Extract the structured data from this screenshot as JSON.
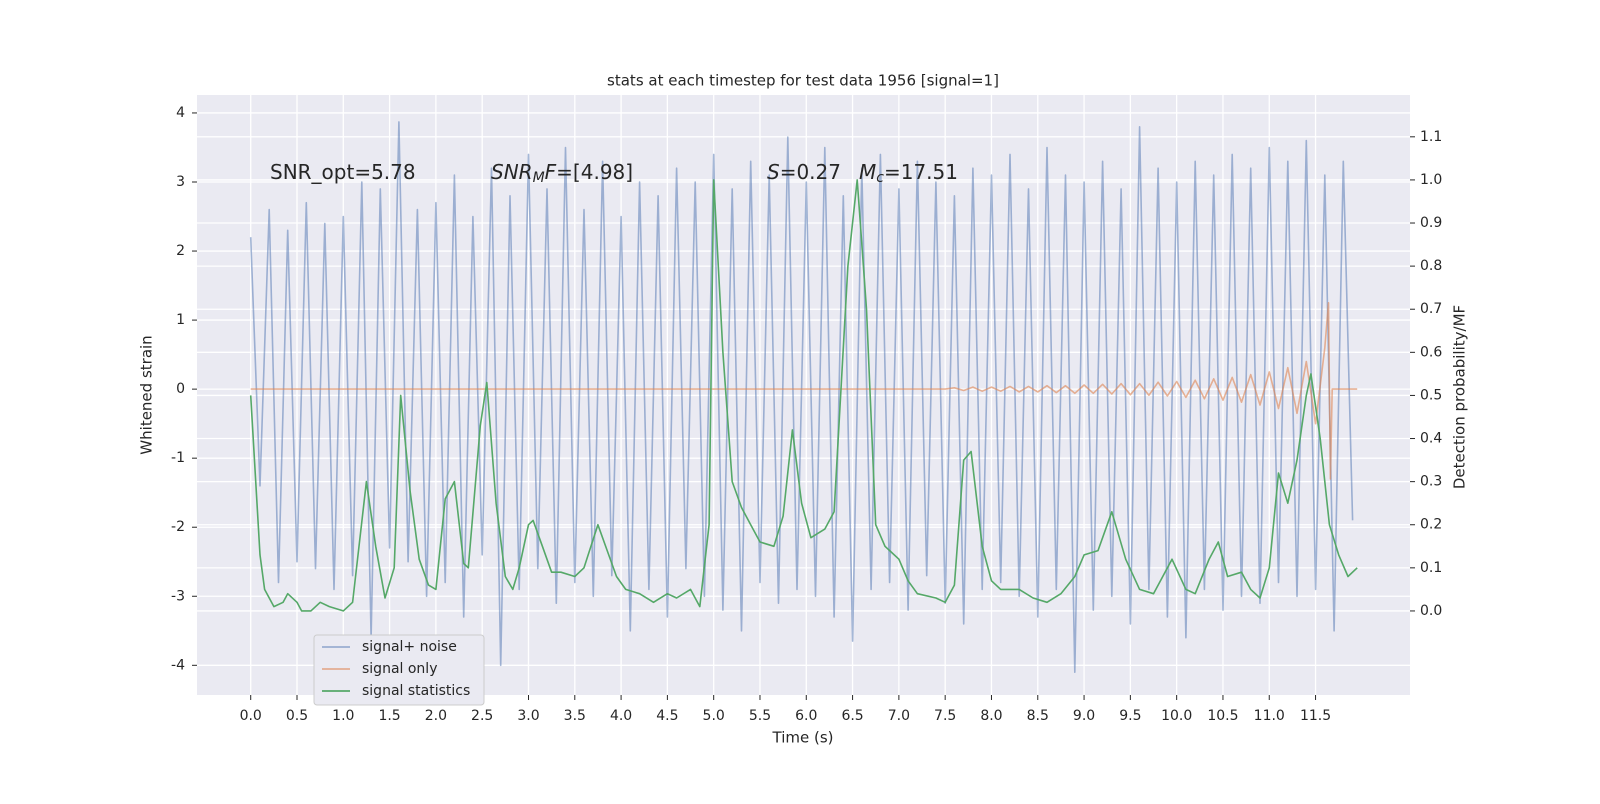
{
  "chart_data": {
    "type": "line",
    "title": "stats at each timestep for test data 1956 [signal=1]",
    "xlabel": "Time (s)",
    "ylabel": "Whitened strain",
    "y2label": "Detection probability/MF",
    "xlim": [
      -0.58,
      12.52
    ],
    "ylim": [
      -4.43,
      4.26
    ],
    "y2lim": [
      -0.195,
      1.197
    ],
    "xticks": [
      {
        "value": 0,
        "label": "0.0"
      },
      0.5,
      {
        "value": 1,
        "label": "1.0"
      },
      1.5,
      {
        "value": 2,
        "label": "2.0"
      },
      2.5,
      {
        "value": 3,
        "label": "3.0"
      },
      3.5,
      {
        "value": 4,
        "label": "4.0"
      },
      4.5,
      {
        "value": 5,
        "label": "5.0"
      },
      5.5,
      {
        "value": 6,
        "label": "6.0"
      },
      6.5,
      {
        "value": 7,
        "label": "7.0"
      },
      7.5,
      {
        "value": 8,
        "label": "8.0"
      },
      8.5,
      {
        "value": 9,
        "label": "9.0"
      },
      9.5,
      {
        "value": 10,
        "label": "10.0"
      },
      10.5,
      {
        "value": 11,
        "label": "11.0"
      },
      11.5
    ],
    "yticks": [
      -4,
      -3,
      -2,
      -1,
      0,
      1,
      2,
      3,
      4
    ],
    "y2ticks": [
      {
        "value": 0,
        "label": "0.0"
      },
      0.1,
      0.2,
      0.3,
      0.4,
      0.5,
      0.6,
      0.7,
      0.8,
      0.9,
      {
        "value": 1,
        "label": "1.0"
      },
      1.1
    ],
    "grid": true,
    "legend": "lower left",
    "annotations": [
      {
        "parts": [
          {
            "text": "SNR_opt=5.78"
          }
        ]
      },
      {
        "parts": [
          {
            "text": "SNR",
            "style": "italic"
          },
          {
            "text": "M",
            "style": "italic-sub"
          },
          {
            "text": "F",
            "style": "italic"
          },
          {
            "text": "=[4.98]"
          }
        ]
      },
      {
        "parts": [
          {
            "text": "S",
            "style": "italic"
          },
          {
            "text": "=0.27"
          }
        ]
      },
      {
        "parts": [
          {
            "text": "M",
            "style": "italic"
          },
          {
            "text": "c",
            "style": "italic-sub"
          },
          {
            "text": "=17.51"
          }
        ]
      }
    ],
    "series": [
      {
        "name": "signal+ noise",
        "color": "#4c72b0",
        "alpha": 0.5,
        "x": [
          0,
          0.1,
          0.2,
          0.3,
          0.4,
          0.5,
          0.6,
          0.7,
          0.8,
          0.9,
          1,
          1.1,
          1.2,
          1.3,
          1.4,
          1.5,
          1.6,
          1.7,
          1.8,
          1.9,
          2,
          2.1,
          2.2,
          2.3,
          2.4,
          2.5,
          2.6,
          2.7,
          2.8,
          2.9,
          3,
          3.1,
          3.2,
          3.3,
          3.4,
          3.5,
          3.6,
          3.7,
          3.8,
          3.9,
          4,
          4.1,
          4.2,
          4.3,
          4.4,
          4.5,
          4.6,
          4.7,
          4.8,
          4.9,
          5,
          5.1,
          5.2,
          5.3,
          5.4,
          5.5,
          5.6,
          5.7,
          5.8,
          5.9,
          6,
          6.1,
          6.2,
          6.3,
          6.4,
          6.5,
          6.6,
          6.7,
          6.8,
          6.9,
          7,
          7.1,
          7.2,
          7.3,
          7.4,
          7.5,
          7.6,
          7.7,
          7.8,
          7.9,
          8,
          8.1,
          8.2,
          8.3,
          8.4,
          8.5,
          8.6,
          8.7,
          8.8,
          8.9,
          9,
          9.1,
          9.2,
          9.3,
          9.4,
          9.5,
          9.6,
          9.7,
          9.8,
          9.9,
          10,
          10.1,
          10.2,
          10.3,
          10.4,
          10.5,
          10.6,
          10.7,
          10.8,
          10.9,
          11,
          11.1,
          11.2,
          11.3,
          11.4,
          11.5,
          11.6,
          11.7,
          11.8,
          11.9
        ],
        "values": [
          2.2,
          -1.4,
          2.6,
          -2.8,
          2.3,
          -2.5,
          2.7,
          -2.6,
          2.4,
          -2.9,
          2.5,
          -2.7,
          3.0,
          -3.6,
          2.9,
          -2.3,
          3.87,
          -2.5,
          2.6,
          -3.0,
          2.7,
          -2.8,
          3.1,
          -3.3,
          2.5,
          -2.4,
          3.2,
          -4.0,
          2.8,
          -2.9,
          3.4,
          -2.6,
          2.9,
          -3.1,
          3.5,
          -2.8,
          2.6,
          -3.0,
          3.3,
          -2.7,
          2.5,
          -3.5,
          3.0,
          -2.9,
          2.8,
          -3.3,
          3.2,
          -2.6,
          3.0,
          -3.0,
          3.4,
          -3.2,
          2.9,
          -3.5,
          3.3,
          -2.8,
          3.1,
          -3.1,
          3.65,
          -2.9,
          3.0,
          -3.0,
          3.5,
          -3.3,
          2.8,
          -3.65,
          3.2,
          -2.9,
          3.4,
          -2.8,
          2.9,
          -3.2,
          3.3,
          -2.7,
          3.0,
          -3.1,
          2.8,
          -3.4,
          3.2,
          -2.9,
          3.1,
          -2.8,
          3.4,
          -3.0,
          2.9,
          -3.3,
          3.5,
          -2.9,
          3.1,
          -4.1,
          3.0,
          -3.2,
          3.3,
          -3.0,
          2.9,
          -3.4,
          3.8,
          -2.9,
          3.2,
          -3.3,
          3.0,
          -3.6,
          3.3,
          -2.9,
          3.1,
          -3.2,
          3.4,
          -3.0,
          3.2,
          -3.1,
          3.5,
          -2.8,
          3.3,
          -3.0,
          3.6,
          -2.9,
          3.1,
          -3.5,
          3.3,
          -1.9
        ]
      },
      {
        "name": "signal only",
        "color": "#dd8452",
        "alpha": 0.6,
        "x": [
          0,
          7.5,
          7.6,
          7.7,
          7.8,
          7.9,
          8,
          8.1,
          8.2,
          8.3,
          8.4,
          8.5,
          8.6,
          8.7,
          8.8,
          8.9,
          9,
          9.1,
          9.2,
          9.3,
          9.4,
          9.5,
          9.6,
          9.7,
          9.8,
          9.9,
          10,
          10.1,
          10.2,
          10.3,
          10.4,
          10.5,
          10.6,
          10.7,
          10.8,
          10.9,
          11,
          11.1,
          11.2,
          11.3,
          11.4,
          11.5,
          11.6,
          11.64,
          11.66,
          11.68,
          11.95
        ],
        "values": [
          0,
          0,
          0.02,
          -0.02,
          0.03,
          -0.03,
          0.03,
          -0.03,
          0.04,
          -0.04,
          0.04,
          -0.04,
          0.05,
          -0.05,
          0.05,
          -0.06,
          0.06,
          -0.06,
          0.07,
          -0.07,
          0.08,
          -0.08,
          0.08,
          -0.09,
          0.1,
          -0.1,
          0.11,
          -0.12,
          0.13,
          -0.14,
          0.15,
          -0.16,
          0.17,
          -0.19,
          0.21,
          -0.23,
          0.25,
          -0.28,
          0.31,
          -0.35,
          0.4,
          -0.5,
          0.6,
          1.25,
          -1.3,
          0,
          0
        ]
      },
      {
        "name": "signal statistics",
        "color": "#55a868",
        "alpha": 1,
        "axis": "y2",
        "x": [
          0,
          0.1,
          0.15,
          0.25,
          0.35,
          0.4,
          0.5,
          0.55,
          0.65,
          0.75,
          0.85,
          1,
          1.1,
          1.25,
          1.35,
          1.45,
          1.55,
          1.62,
          1.72,
          1.82,
          1.92,
          2,
          2.1,
          2.2,
          2.3,
          2.35,
          2.48,
          2.55,
          2.65,
          2.75,
          2.83,
          2.9,
          3,
          3.05,
          3.15,
          3.25,
          3.35,
          3.5,
          3.6,
          3.75,
          3.85,
          3.95,
          4.05,
          4.2,
          4.35,
          4.5,
          4.6,
          4.75,
          4.85,
          4.95,
          5,
          5.1,
          5.2,
          5.3,
          5.4,
          5.5,
          5.65,
          5.75,
          5.85,
          5.95,
          6.05,
          6.2,
          6.3,
          6.45,
          6.55,
          6.65,
          6.75,
          6.85,
          7,
          7.1,
          7.2,
          7.4,
          7.5,
          7.6,
          7.7,
          7.78,
          7.9,
          8,
          8.1,
          8.3,
          8.45,
          8.6,
          8.75,
          8.9,
          9,
          9.15,
          9.3,
          9.45,
          9.6,
          9.75,
          9.95,
          10.1,
          10.2,
          10.35,
          10.45,
          10.55,
          10.7,
          10.8,
          10.9,
          11,
          11.1,
          11.2,
          11.3,
          11.4,
          11.45,
          11.55,
          11.65,
          11.75,
          11.85,
          11.95
        ],
        "values": [
          0.5,
          0.13,
          0.05,
          0.01,
          0.02,
          0.04,
          0.02,
          0.0,
          0.0,
          0.02,
          0.01,
          0.0,
          0.02,
          0.3,
          0.15,
          0.03,
          0.1,
          0.5,
          0.28,
          0.12,
          0.06,
          0.05,
          0.26,
          0.3,
          0.11,
          0.1,
          0.43,
          0.53,
          0.25,
          0.08,
          0.05,
          0.1,
          0.2,
          0.21,
          0.15,
          0.09,
          0.09,
          0.08,
          0.1,
          0.2,
          0.14,
          0.08,
          0.05,
          0.04,
          0.02,
          0.04,
          0.03,
          0.05,
          0.01,
          0.2,
          1.0,
          0.6,
          0.3,
          0.24,
          0.2,
          0.16,
          0.15,
          0.22,
          0.42,
          0.25,
          0.17,
          0.19,
          0.23,
          0.8,
          1.0,
          0.7,
          0.2,
          0.15,
          0.12,
          0.07,
          0.04,
          0.03,
          0.02,
          0.06,
          0.35,
          0.37,
          0.15,
          0.07,
          0.05,
          0.05,
          0.03,
          0.02,
          0.04,
          0.08,
          0.13,
          0.14,
          0.23,
          0.12,
          0.05,
          0.04,
          0.12,
          0.05,
          0.04,
          0.12,
          0.16,
          0.08,
          0.09,
          0.05,
          0.03,
          0.1,
          0.32,
          0.25,
          0.35,
          0.5,
          0.55,
          0.4,
          0.2,
          0.13,
          0.08,
          0.1
        ]
      }
    ]
  }
}
